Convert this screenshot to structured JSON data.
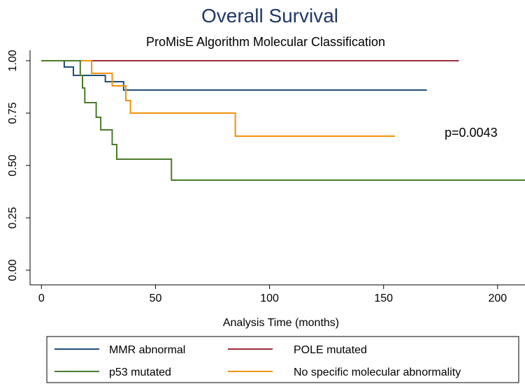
{
  "chart_data": {
    "type": "line",
    "subtype": "kaplan-meier step",
    "title": "Overall Survival",
    "subtitle": "ProMisE Algorithm Molecular Classification",
    "xlabel": "Analysis Time (months)",
    "ylabel": "",
    "xlim": [
      -5,
      212
    ],
    "ylim": [
      -0.07,
      1.05
    ],
    "xticks": [
      0,
      50,
      100,
      150,
      200
    ],
    "yticks": [
      "0.00",
      "0.25",
      "0.50",
      "0.75",
      "1.00"
    ],
    "grid": false,
    "legend_position": "bottom",
    "annotation": "p=0.0043",
    "series": [
      {
        "name": "MMR abnormal",
        "color": "#1f4e79",
        "x": [
          0,
          10,
          10,
          14,
          14,
          19,
          19,
          28,
          28,
          36,
          36,
          169
        ],
        "y": [
          1.0,
          1.0,
          0.97,
          0.97,
          0.93,
          0.93,
          0.93,
          0.93,
          0.9,
          0.9,
          0.86,
          0.86
        ]
      },
      {
        "name": "POLE mutated",
        "color": "#9e2a3c",
        "x": [
          0,
          183
        ],
        "y": [
          1.0,
          1.0
        ]
      },
      {
        "name": "p53 mutated",
        "color": "#4a7a2a",
        "x": [
          0,
          17,
          17,
          18,
          18,
          19,
          19,
          24,
          24,
          26,
          26,
          31,
          31,
          33,
          33,
          57,
          57,
          212
        ],
        "y": [
          1.0,
          1.0,
          0.93,
          0.93,
          0.87,
          0.87,
          0.8,
          0.8,
          0.73,
          0.73,
          0.67,
          0.67,
          0.6,
          0.6,
          0.53,
          0.53,
          0.43,
          0.43
        ]
      },
      {
        "name": "No specific molecular abnormality",
        "color": "#f0920a",
        "x": [
          0,
          22,
          22,
          31,
          31,
          37,
          37,
          39,
          39,
          85,
          85,
          155
        ],
        "y": [
          1.0,
          1.0,
          0.94,
          0.94,
          0.88,
          0.88,
          0.81,
          0.81,
          0.75,
          0.75,
          0.64,
          0.64
        ]
      }
    ]
  }
}
